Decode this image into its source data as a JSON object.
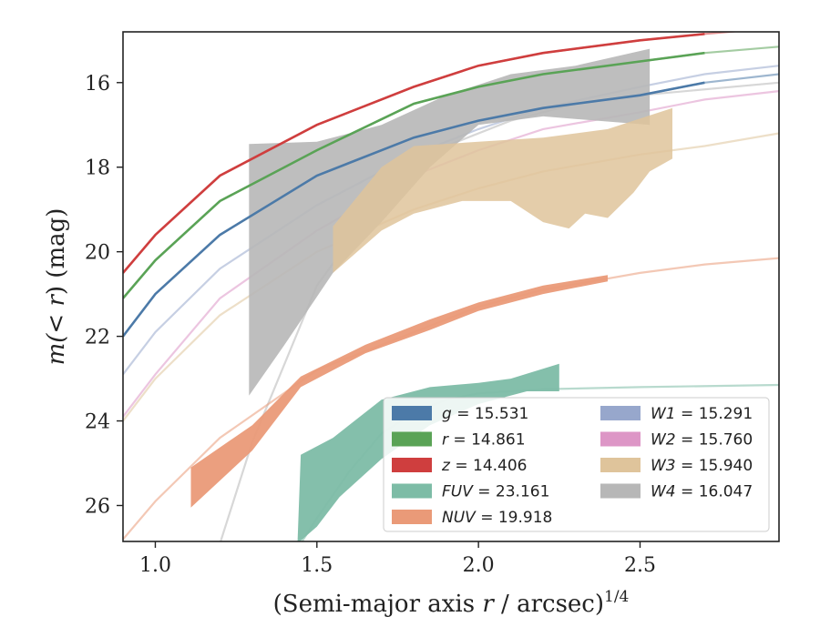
{
  "chart_data": {
    "type": "area",
    "xlabel": "(Semi-major axis r / arcsec)^1/4",
    "xlabel_parts": {
      "main": "(Semi-major axis ",
      "var": "r",
      "rest": " / arcsec)",
      "sup": "1/4"
    },
    "ylabel": "m(<r) (mag)",
    "ylabel_parts": {
      "pre": "m(",
      "var": "< r",
      "post": ") (mag)"
    },
    "xlim": [
      0.9,
      2.93
    ],
    "ylim": [
      26.85,
      14.8
    ],
    "y_inverted": true,
    "x_ticks": [
      1.0,
      1.5,
      2.0,
      2.5
    ],
    "x_tick_labels": [
      "1.0",
      "1.5",
      "2.0",
      "2.5"
    ],
    "y_ticks": [
      16,
      18,
      20,
      22,
      24,
      26
    ],
    "y_tick_labels": [
      "16",
      "18",
      "20",
      "22",
      "24",
      "26"
    ],
    "grid": false,
    "legend_position": "lower-right",
    "legend": [
      {
        "band": "g",
        "value": "15.531",
        "color": "#4c7aa8"
      },
      {
        "band": "r",
        "value": "14.861",
        "color": "#5aa356"
      },
      {
        "band": "z",
        "value": "14.406",
        "color": "#cf3e3e"
      },
      {
        "band": "FUV",
        "value": "23.161",
        "color": "#7dbca6"
      },
      {
        "band": "NUV",
        "value": "19.918",
        "color": "#ea9a78"
      },
      {
        "band": "W1",
        "value": "15.291",
        "color": "#97a7cc"
      },
      {
        "band": "W2",
        "value": "15.760",
        "color": "#dd96c6"
      },
      {
        "band": "W3",
        "value": "15.940",
        "color": "#dfc49b"
      },
      {
        "band": "W4",
        "value": "16.047",
        "color": "#b7b7b7"
      }
    ],
    "model_curves": [
      {
        "band": "z",
        "color": "#cf3e3e",
        "x": [
          0.9,
          1.0,
          1.2,
          1.5,
          1.8,
          2.0,
          2.2,
          2.5,
          2.7,
          2.93
        ],
        "y": [
          20.5,
          19.6,
          18.2,
          17.0,
          16.1,
          15.6,
          15.3,
          15.0,
          14.85,
          14.7
        ]
      },
      {
        "band": "r",
        "color": "#5aa356",
        "x": [
          0.9,
          1.0,
          1.2,
          1.5,
          1.8,
          2.0,
          2.2,
          2.5,
          2.7,
          2.93
        ],
        "y": [
          21.1,
          20.2,
          18.8,
          17.6,
          16.5,
          16.1,
          15.8,
          15.5,
          15.3,
          15.15
        ]
      },
      {
        "band": "g",
        "color": "#4c7aa8",
        "x": [
          0.9,
          1.0,
          1.2,
          1.5,
          1.8,
          2.0,
          2.2,
          2.5,
          2.7,
          2.93
        ],
        "y": [
          22.0,
          21.0,
          19.6,
          18.2,
          17.3,
          16.9,
          16.6,
          16.3,
          16.0,
          15.8
        ]
      },
      {
        "band": "W1",
        "color": "#97a7cc",
        "x": [
          0.9,
          1.0,
          1.2,
          1.5,
          1.8,
          2.0,
          2.2,
          2.5,
          2.7,
          2.93
        ],
        "y": [
          22.9,
          21.9,
          20.4,
          18.9,
          17.7,
          17.1,
          16.6,
          16.1,
          15.8,
          15.6
        ]
      },
      {
        "band": "W2",
        "color": "#dd96c6",
        "x": [
          0.9,
          1.0,
          1.2,
          1.5,
          1.8,
          2.0,
          2.2,
          2.5,
          2.7,
          2.93
        ],
        "y": [
          23.9,
          22.9,
          21.1,
          19.5,
          18.2,
          17.6,
          17.1,
          16.7,
          16.4,
          16.2
        ]
      },
      {
        "band": "W3",
        "color": "#dfc49b",
        "x": [
          0.9,
          1.0,
          1.2,
          1.5,
          1.8,
          2.0,
          2.2,
          2.5,
          2.7,
          2.93
        ],
        "y": [
          24.0,
          23.0,
          21.5,
          20.0,
          19.0,
          18.5,
          18.1,
          17.7,
          17.5,
          17.2
        ]
      },
      {
        "band": "W4",
        "color": "#b7b7b7",
        "x": [
          1.2,
          1.3,
          1.5,
          1.7,
          1.9,
          2.1,
          2.3,
          2.5,
          2.93
        ],
        "y": [
          26.9,
          24.5,
          20.8,
          18.7,
          17.5,
          16.9,
          16.5,
          16.3,
          16.0
        ]
      },
      {
        "band": "NUV",
        "color": "#ea9a78",
        "x": [
          0.9,
          1.0,
          1.2,
          1.5,
          1.8,
          2.0,
          2.2,
          2.5,
          2.7,
          2.93
        ],
        "y": [
          26.8,
          25.9,
          24.4,
          22.8,
          21.9,
          21.3,
          20.9,
          20.5,
          20.3,
          20.15
        ]
      },
      {
        "band": "FUV",
        "color": "#7dbca6",
        "x": [
          1.45,
          1.5,
          1.6,
          1.7,
          1.8,
          1.9,
          2.0,
          2.2,
          2.5,
          2.93
        ],
        "y": [
          26.9,
          26.3,
          25.2,
          24.3,
          23.8,
          23.5,
          23.35,
          23.25,
          23.2,
          23.15
        ]
      }
    ],
    "measured_bands": [
      {
        "band": "W4",
        "color": "#b7b7b7",
        "opacity": 0.9,
        "upper": [
          [
            1.29,
            17.45
          ],
          [
            1.5,
            17.4
          ],
          [
            1.7,
            17.0
          ],
          [
            1.9,
            16.3
          ],
          [
            2.1,
            15.8
          ],
          [
            2.3,
            15.6
          ],
          [
            2.53,
            15.2
          ]
        ],
        "lower": [
          [
            1.29,
            23.4
          ],
          [
            1.4,
            22.2
          ],
          [
            1.55,
            20.5
          ],
          [
            1.7,
            19.3
          ],
          [
            1.85,
            18.0
          ],
          [
            2.0,
            17.0
          ],
          [
            2.2,
            16.8
          ],
          [
            2.53,
            17.0
          ]
        ]
      },
      {
        "band": "W3",
        "color": "#dfc49b",
        "opacity": 0.85,
        "upper": [
          [
            1.55,
            19.4
          ],
          [
            1.7,
            18.0
          ],
          [
            1.8,
            17.5
          ],
          [
            2.0,
            17.4
          ],
          [
            2.2,
            17.3
          ],
          [
            2.4,
            17.1
          ],
          [
            2.6,
            16.6
          ]
        ],
        "lower": [
          [
            1.55,
            20.5
          ],
          [
            1.7,
            19.5
          ],
          [
            1.8,
            19.1
          ],
          [
            1.95,
            18.8
          ],
          [
            2.1,
            18.8
          ],
          [
            2.2,
            19.3
          ],
          [
            2.28,
            19.45
          ],
          [
            2.33,
            19.1
          ],
          [
            2.4,
            19.2
          ],
          [
            2.48,
            18.6
          ],
          [
            2.53,
            18.1
          ],
          [
            2.6,
            17.8
          ]
        ]
      },
      {
        "band": "NUV",
        "color": "#ea9a78",
        "opacity": 0.95,
        "upper": [
          [
            1.11,
            25.1
          ],
          [
            1.3,
            24.1
          ],
          [
            1.45,
            22.95
          ],
          [
            1.65,
            22.2
          ],
          [
            1.85,
            21.6
          ],
          [
            2.0,
            21.2
          ],
          [
            2.2,
            20.8
          ],
          [
            2.4,
            20.55
          ]
        ],
        "lower": [
          [
            1.11,
            26.05
          ],
          [
            1.3,
            24.7
          ],
          [
            1.45,
            23.2
          ],
          [
            1.65,
            22.4
          ],
          [
            1.85,
            21.85
          ],
          [
            2.0,
            21.4
          ],
          [
            2.2,
            21.0
          ],
          [
            2.4,
            20.7
          ]
        ]
      },
      {
        "band": "FUV",
        "color": "#7dbca6",
        "opacity": 0.95,
        "upper": [
          [
            1.45,
            24.8
          ],
          [
            1.55,
            24.4
          ],
          [
            1.7,
            23.5
          ],
          [
            1.85,
            23.2
          ],
          [
            2.0,
            23.1
          ],
          [
            2.1,
            23.0
          ],
          [
            2.25,
            22.65
          ]
        ],
        "lower": [
          [
            1.44,
            26.9
          ],
          [
            1.5,
            26.5
          ],
          [
            1.57,
            25.8
          ],
          [
            1.7,
            24.9
          ],
          [
            1.85,
            24.1
          ],
          [
            2.0,
            23.6
          ],
          [
            2.15,
            23.3
          ],
          [
            2.25,
            23.3
          ]
        ]
      }
    ],
    "measured_lines": [
      {
        "band": "z",
        "color": "#cf3e3e",
        "x": [
          0.9,
          1.0,
          1.2,
          1.5,
          1.8,
          2.0,
          2.2,
          2.5,
          2.7
        ],
        "y": [
          20.5,
          19.6,
          18.2,
          17.0,
          16.1,
          15.6,
          15.3,
          15.0,
          14.85
        ]
      },
      {
        "band": "r",
        "color": "#5aa356",
        "x": [
          0.9,
          1.0,
          1.2,
          1.5,
          1.8,
          2.0,
          2.2,
          2.5,
          2.7
        ],
        "y": [
          21.1,
          20.2,
          18.8,
          17.6,
          16.5,
          16.1,
          15.8,
          15.5,
          15.3
        ]
      },
      {
        "band": "g",
        "color": "#4c7aa8",
        "x": [
          0.9,
          1.0,
          1.2,
          1.5,
          1.8,
          2.0,
          2.2,
          2.5,
          2.7
        ],
        "y": [
          22.0,
          21.0,
          19.6,
          18.2,
          17.3,
          16.9,
          16.6,
          16.3,
          16.0
        ]
      }
    ]
  }
}
